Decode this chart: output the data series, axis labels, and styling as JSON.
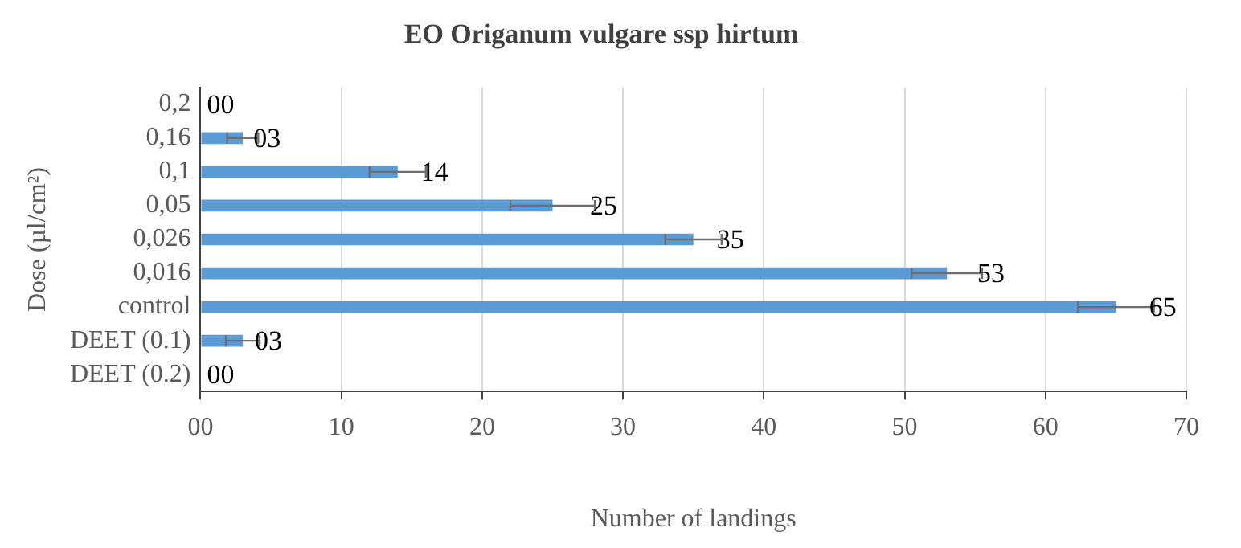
{
  "chart_data": {
    "type": "bar",
    "orientation": "horizontal",
    "title": "EO Origanum vulgare ssp hirtum",
    "xlabel": "Number of landings",
    "ylabel": "Dose (µl/cm²)",
    "categories": [
      "0,2",
      "0,16",
      "0,1",
      "0,05",
      "0,026",
      "0,016",
      "control",
      "DEET (0.1)",
      "DEET (0.2)"
    ],
    "values": [
      0,
      3,
      14,
      25,
      35,
      53,
      65,
      3,
      0
    ],
    "errors": [
      null,
      1.1,
      2,
      3,
      2,
      2.5,
      2.7,
      1.2,
      null
    ],
    "value_labels": [
      "00",
      "03",
      "14",
      "25",
      "35",
      "53",
      "65",
      "03",
      "00"
    ],
    "color": "#5b9bd5",
    "xlim": [
      0,
      70
    ],
    "xticks": [
      {
        "value": 0,
        "label": "00"
      },
      10,
      20,
      30,
      40,
      50,
      60,
      70
    ],
    "grid": "x",
    "legend": false
  }
}
